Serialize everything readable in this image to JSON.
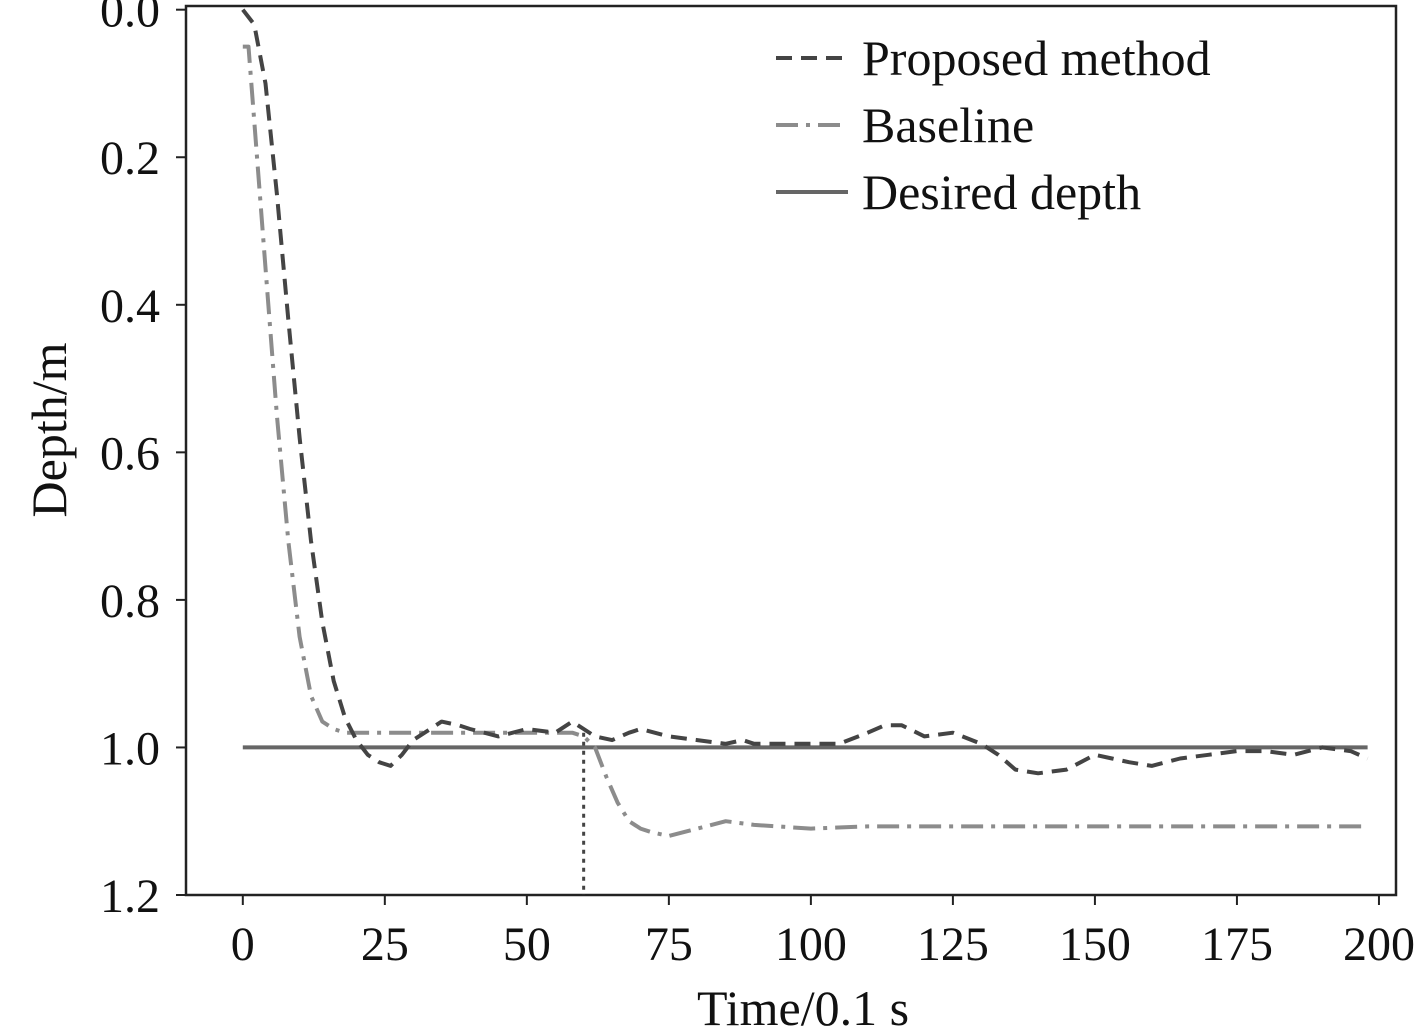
{
  "chart_data": {
    "type": "line",
    "title": "",
    "xlabel": "Time/0.1 s",
    "ylabel": "Depth/m",
    "xlim": [
      -10,
      203
    ],
    "ylim": [
      1.2,
      -0.005
    ],
    "y_inverted": true,
    "grid": false,
    "legend_position": "top-right",
    "xticks": [
      0,
      25,
      50,
      75,
      100,
      125,
      150,
      175,
      200
    ],
    "xtick_labels": [
      "0",
      "25",
      "50",
      "75",
      "100",
      "125",
      "150",
      "175",
      "200"
    ],
    "yticks": [
      0.0,
      0.2,
      0.4,
      0.6,
      0.8,
      1.0,
      1.2
    ],
    "ytick_labels": [
      "0.0",
      "0.2",
      "0.4",
      "0.6",
      "0.8",
      "1.0",
      "1.2"
    ],
    "marker_line": {
      "x": 60,
      "y_from": 0.98,
      "y_to": 1.2,
      "style": "dotted",
      "color": "#444444"
    },
    "series": [
      {
        "name": "Proposed method",
        "style": "dashed",
        "color": "#444444",
        "x": [
          0,
          2,
          4,
          6,
          8,
          10,
          12,
          14,
          16,
          18,
          20,
          22,
          24,
          26,
          28,
          30,
          32,
          35,
          38,
          40,
          45,
          50,
          55,
          58,
          60,
          62,
          65,
          68,
          70,
          75,
          80,
          85,
          88,
          90,
          95,
          100,
          105,
          110,
          113,
          116,
          120,
          125,
          130,
          133,
          136,
          140,
          145,
          150,
          153,
          156,
          160,
          165,
          170,
          175,
          180,
          185,
          190,
          195,
          198
        ],
        "y": [
          0.0,
          0.02,
          0.1,
          0.25,
          0.42,
          0.58,
          0.72,
          0.83,
          0.91,
          0.96,
          0.99,
          1.01,
          1.02,
          1.025,
          1.01,
          0.99,
          0.98,
          0.965,
          0.97,
          0.975,
          0.985,
          0.975,
          0.98,
          0.965,
          0.975,
          0.985,
          0.99,
          0.98,
          0.975,
          0.985,
          0.99,
          0.995,
          0.99,
          0.995,
          0.995,
          0.995,
          0.995,
          0.98,
          0.97,
          0.97,
          0.985,
          0.98,
          0.995,
          1.01,
          1.03,
          1.035,
          1.03,
          1.01,
          1.015,
          1.02,
          1.025,
          1.015,
          1.01,
          1.005,
          1.005,
          1.01,
          1.0,
          1.005,
          1.015
        ]
      },
      {
        "name": "Baseline",
        "style": "dashdot",
        "color": "#8c8c8c",
        "x": [
          0,
          1,
          2,
          4,
          6,
          8,
          10,
          12,
          14,
          16,
          18,
          20,
          25,
          30,
          40,
          50,
          55,
          58,
          60,
          62,
          64,
          66,
          68,
          70,
          72,
          75,
          80,
          85,
          90,
          100,
          110,
          125,
          150,
          175,
          198
        ],
        "y": [
          0.05,
          0.05,
          0.15,
          0.35,
          0.55,
          0.72,
          0.85,
          0.93,
          0.965,
          0.975,
          0.98,
          0.98,
          0.98,
          0.98,
          0.98,
          0.98,
          0.98,
          0.98,
          0.985,
          1.0,
          1.04,
          1.075,
          1.1,
          1.11,
          1.115,
          1.12,
          1.11,
          1.1,
          1.105,
          1.11,
          1.107,
          1.107,
          1.107,
          1.107,
          1.107
        ]
      },
      {
        "name": "Desired depth",
        "style": "solid",
        "color": "#666666",
        "x": [
          0,
          198
        ],
        "y": [
          1.0,
          1.0
        ]
      }
    ]
  }
}
